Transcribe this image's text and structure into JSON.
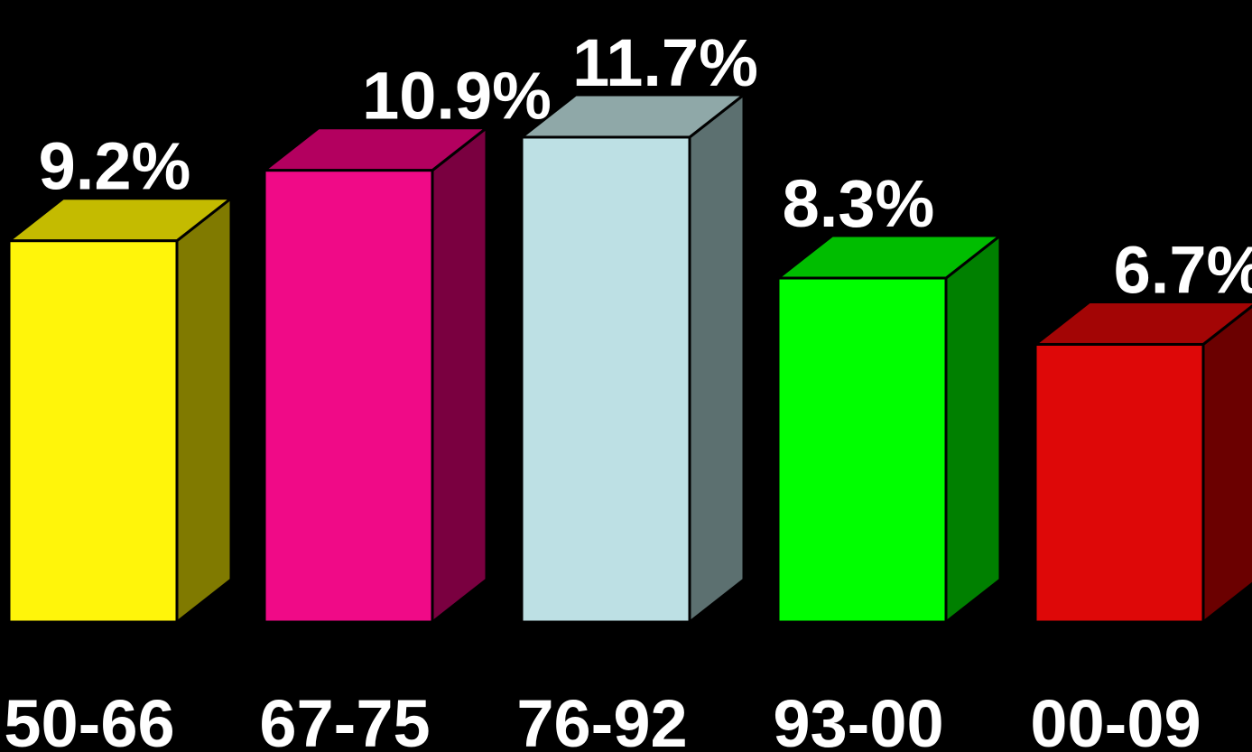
{
  "chart_data": {
    "type": "bar",
    "style": "3d",
    "categories": [
      "50-66",
      "67-75",
      "76-92",
      "93-00",
      "00-09"
    ],
    "values": [
      9.2,
      10.9,
      11.7,
      8.3,
      6.7
    ],
    "value_labels": [
      "9.2%",
      "10.9%",
      "11.7%",
      "8.3%",
      "6.7%"
    ],
    "unit": "%",
    "title": "",
    "xlabel": "",
    "ylabel": "",
    "grid": false,
    "legend": "none",
    "background": "#000000",
    "colors": [
      {
        "front": "#fff50a",
        "top": "#c4bb00",
        "side": "#807a00"
      },
      {
        "front": "#f00a87",
        "top": "#b3005f",
        "side": "#7a0040"
      },
      {
        "front": "#bde0e4",
        "top": "#8fa8a8",
        "side": "#5c7070"
      },
      {
        "front": "#00ff00",
        "top": "#00bd00",
        "side": "#008000"
      },
      {
        "front": "#de0808",
        "top": "#a30505",
        "side": "#6b0000"
      }
    ]
  }
}
